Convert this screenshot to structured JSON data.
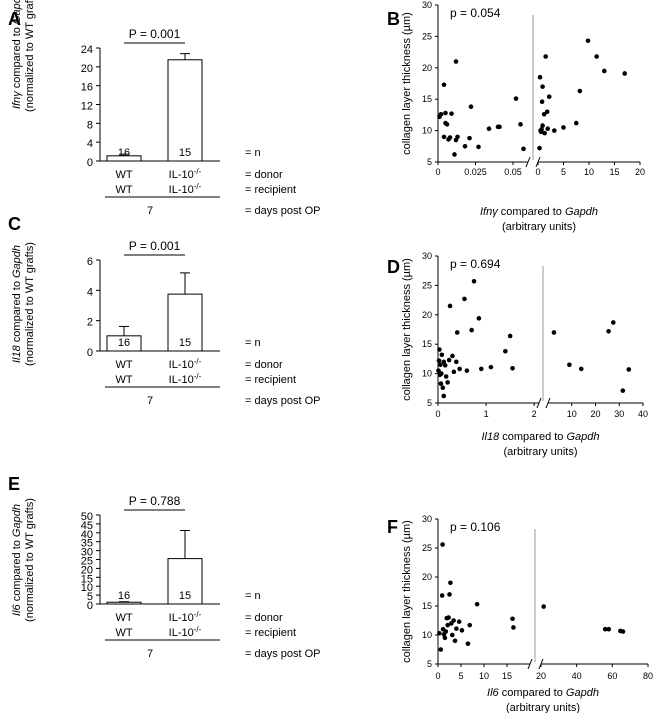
{
  "chart_data": [
    {
      "panel": "A",
      "type": "bar",
      "ylabel_gene": "Ifnγ",
      "ylabel_mid": " compared to ",
      "ylabel_ref": "Gapdh",
      "ylabel2": "(normalized to WT grafts)",
      "ylim": [
        0,
        24
      ],
      "yticks": [
        "0",
        "4",
        "8",
        "12",
        "16",
        "20",
        "24"
      ],
      "categories": [
        "WT",
        "IL-10-/-"
      ],
      "values": [
        1.1,
        21.5
      ],
      "errors": [
        0.35,
        1.3
      ],
      "n_labels": [
        "16",
        "15"
      ],
      "p_value": "P = 0.001",
      "rows": {
        "donor": [
          "WT",
          "IL-10"
        ],
        "recipient": [
          "WT",
          "IL-10"
        ]
      },
      "ko_sup": "-/-",
      "row_labels": {
        "n": "= n",
        "donor": "= donor",
        "recipient": "= recipient",
        "days": "= days post OP"
      },
      "day": "7"
    },
    {
      "panel": "B",
      "type": "scatter",
      "p_value": "p = 0.054",
      "ylabel": "collagen layer thickness (µm)",
      "ylim": [
        5,
        30
      ],
      "yticks": [
        "5",
        "10",
        "15",
        "20",
        "25",
        "30"
      ],
      "xlabel_gene": "Ifnγ",
      "xlabel_mid": " compared to ",
      "xlabel_ref": "Gapdh",
      "xlabel2": "(arbitrary units)",
      "segments": [
        {
          "xlim": [
            0,
            0.06
          ],
          "ticks": [
            "0",
            "0.025",
            "0.05"
          ],
          "tick_values": [
            0,
            0.025,
            0.05
          ],
          "x": [
            0.001,
            0.002,
            0.004,
            0.004,
            0.005,
            0.005,
            0.006,
            0.007,
            0.008,
            0.009,
            0.011,
            0.012,
            0.012,
            0.013,
            0.018,
            0.021,
            0.022,
            0.027,
            0.034,
            0.04,
            0.041,
            0.052,
            0.055,
            0.057
          ],
          "y": [
            12.2,
            12.6,
            17.3,
            9.0,
            11.2,
            12.8,
            11.0,
            8.6,
            8.9,
            12.7,
            6.2,
            8.5,
            21.0,
            9.0,
            7.5,
            8.8,
            13.8,
            7.4,
            10.3,
            10.6,
            10.6,
            15.1,
            11.0,
            7.1
          ]
        },
        {
          "xlim": [
            0,
            20
          ],
          "ticks": [
            "0",
            "5",
            "10",
            "15",
            "20"
          ],
          "tick_values": [
            0,
            5,
            10,
            15,
            20
          ],
          "x": [
            0.3,
            0.5,
            0.7,
            0.9,
            0.8,
            1.2,
            1.5,
            1.8,
            1.9,
            2.2,
            0.4,
            0.9,
            0.6,
            1.3,
            3.2,
            5.0,
            7.5,
            8.2,
            9.8,
            11.5,
            13.0,
            17.0
          ],
          "y": [
            7.2,
            10.0,
            10.2,
            10.8,
            14.6,
            12.6,
            21.8,
            13.0,
            10.3,
            15.4,
            18.5,
            17.0,
            9.8,
            9.6,
            10.0,
            10.5,
            11.2,
            16.3,
            24.3,
            21.8,
            19.5,
            19.1
          ]
        }
      ]
    },
    {
      "panel": "C",
      "type": "bar",
      "ylabel_gene": "Il18",
      "ylabel_mid": " compared to ",
      "ylabel_ref": "Gapdh",
      "ylabel2": "(normalized to WT grafts)",
      "ylim": [
        0,
        6
      ],
      "yticks": [
        "0",
        "2",
        "4",
        "6"
      ],
      "categories": [
        "WT",
        "IL-10-/-"
      ],
      "values": [
        1.0,
        3.75
      ],
      "errors": [
        0.62,
        1.4
      ],
      "n_labels": [
        "16",
        "15"
      ],
      "p_value": "P = 0.001",
      "rows": {
        "donor": [
          "WT",
          "IL-10"
        ],
        "recipient": [
          "WT",
          "IL-10"
        ]
      },
      "ko_sup": "-/-",
      "row_labels": {
        "n": "= n",
        "donor": "= donor",
        "recipient": "= recipient",
        "days": "= days post OP"
      },
      "day": "7"
    },
    {
      "panel": "D",
      "type": "scatter",
      "p_value": "p = 0.694",
      "ylabel": "collagen layer thickness (µm)",
      "ylim": [
        5,
        30
      ],
      "yticks": [
        "5",
        "10",
        "15",
        "20",
        "25",
        "30"
      ],
      "xlabel_gene": "Il18",
      "xlabel_mid": " compared to ",
      "xlabel_ref": "Gapdh",
      "xlabel2": "(arbitrary units)",
      "segments": [
        {
          "xlim": [
            0,
            2.1
          ],
          "ticks": [
            "0",
            "1",
            "2"
          ],
          "tick_values": [
            0,
            1,
            2
          ],
          "x": [
            0.01,
            0.02,
            0.03,
            0.04,
            0.05,
            0.06,
            0.07,
            0.08,
            0.1,
            0.12,
            0.15,
            0.17,
            0.2,
            0.23,
            0.25,
            0.3,
            0.33,
            0.38,
            0.4,
            0.45,
            0.55,
            0.6,
            0.7,
            0.75,
            0.85,
            0.9,
            1.1,
            1.4,
            1.5,
            1.55,
            0.12
          ],
          "y": [
            10.5,
            12.2,
            14.1,
            9.8,
            11.5,
            8.3,
            10.0,
            13.2,
            7.6,
            12.0,
            11.4,
            9.5,
            8.5,
            12.3,
            21.5,
            13.0,
            10.3,
            12.0,
            17.0,
            10.8,
            22.7,
            10.5,
            17.4,
            25.7,
            19.4,
            10.8,
            11.1,
            13.8,
            16.4,
            10.9,
            6.2
          ]
        },
        {
          "xlim": [
            0,
            40
          ],
          "ticks": [
            "10",
            "20",
            "30",
            "40"
          ],
          "tick_values": [
            10,
            20,
            30,
            40
          ],
          "x": [
            2.5,
            9.0,
            14.0,
            25.5,
            27.5,
            31.5,
            34.0
          ],
          "y": [
            17.0,
            11.5,
            10.8,
            17.2,
            18.7,
            7.1,
            10.7
          ]
        }
      ]
    },
    {
      "panel": "E",
      "type": "bar",
      "ylabel_gene": "Il6",
      "ylabel_mid": " compared to ",
      "ylabel_ref": "Gapdh",
      "ylabel2": "(normalized to WT grafts)",
      "ylim": [
        0,
        50
      ],
      "yticks": [
        "0",
        "5",
        "10",
        "15",
        "20",
        "25",
        "30",
        "35",
        "40",
        "45",
        "50"
      ],
      "categories": [
        "WT",
        "IL-10-/-"
      ],
      "values": [
        1.0,
        25.5
      ],
      "errors": [
        0.3,
        15.8
      ],
      "n_labels": [
        "16",
        "15"
      ],
      "p_value": "P = 0.788",
      "rows": {
        "donor": [
          "WT",
          "IL-10"
        ],
        "recipient": [
          "WT",
          "IL-10"
        ]
      },
      "ko_sup": "-/-",
      "row_labels": {
        "n": "= n",
        "donor": "= donor",
        "recipient": "= recipient",
        "days": "= days post OP"
      },
      "day": "7"
    },
    {
      "panel": "F",
      "type": "scatter",
      "p_value": "p = 0.106",
      "ylabel": "collagen layer thickness (µm)",
      "ylim": [
        5,
        30
      ],
      "yticks": [
        "5",
        "10",
        "15",
        "20",
        "25",
        "30"
      ],
      "xlabel_gene": "Il6",
      "xlabel_mid": " compared to ",
      "xlabel_ref": "Gapdh",
      "xlabel2": "(arbitrary units)",
      "segments": [
        {
          "xlim": [
            0,
            20
          ],
          "ticks": [
            "0",
            "5",
            "10",
            "15"
          ],
          "tick_values": [
            0,
            5,
            10,
            15
          ],
          "x": [
            0.3,
            0.6,
            0.9,
            1.0,
            1.1,
            1.3,
            1.5,
            1.7,
            1.9,
            2.1,
            2.3,
            2.5,
            2.7,
            2.9,
            3.1,
            3.4,
            3.7,
            4.0,
            4.6,
            5.2,
            6.5,
            6.9,
            8.5,
            16.2,
            16.4
          ],
          "y": [
            10.3,
            7.5,
            16.8,
            25.6,
            11.0,
            10.1,
            9.5,
            10.6,
            12.9,
            11.7,
            13.0,
            17.0,
            19.0,
            12.0,
            10.0,
            12.5,
            9.0,
            11.1,
            12.3,
            10.8,
            8.5,
            11.7,
            15.3,
            12.8,
            11.3
          ]
        },
        {
          "xlim": [
            20,
            80
          ],
          "ticks": [
            "20",
            "40",
            "60",
            "80"
          ],
          "tick_values": [
            20,
            40,
            60,
            80
          ],
          "x": [
            21.5,
            56.0,
            58.0,
            64.5,
            66.0
          ],
          "y": [
            14.9,
            11.0,
            11.0,
            10.7,
            10.6
          ]
        }
      ]
    }
  ]
}
